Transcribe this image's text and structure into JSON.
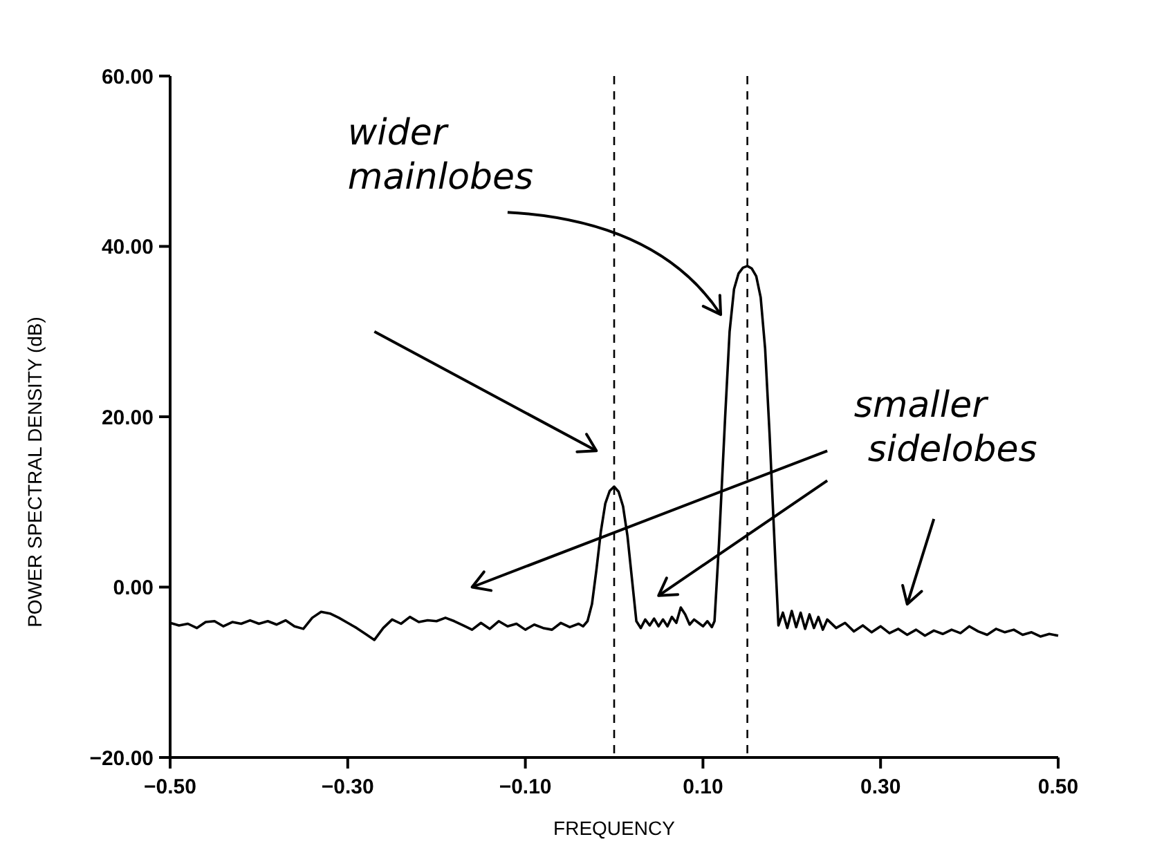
{
  "chart_data": {
    "type": "line",
    "xlabel": "FREQUENCY",
    "ylabel": "POWER SPECTRAL DENSITY (dB)",
    "xlim": [
      -0.5,
      0.5
    ],
    "ylim": [
      -20,
      60
    ],
    "xticks": [
      {
        "value": -0.5,
        "label": "−0.50"
      },
      {
        "value": -0.3,
        "label": "−0.30"
      },
      {
        "value": -0.1,
        "label": "−0.10"
      },
      {
        "value": 0.1,
        "label": "0.10"
      },
      {
        "value": 0.3,
        "label": "0.30"
      },
      {
        "value": 0.5,
        "label": "0.50"
      }
    ],
    "yticks": [
      {
        "value": -20,
        "label": "−20.00"
      },
      {
        "value": 0,
        "label": "0.00"
      },
      {
        "value": 20,
        "label": "20.00"
      },
      {
        "value": 40,
        "label": "40.00"
      },
      {
        "value": 60,
        "label": "60.00"
      }
    ],
    "grid": false,
    "series": [
      {
        "color": "#000000",
        "x": [
          -0.5,
          -0.49,
          -0.48,
          -0.47,
          -0.46,
          -0.45,
          -0.44,
          -0.43,
          -0.42,
          -0.41,
          -0.4,
          -0.39,
          -0.38,
          -0.37,
          -0.36,
          -0.35,
          -0.34,
          -0.33,
          -0.32,
          -0.31,
          -0.3,
          -0.29,
          -0.28,
          -0.27,
          -0.26,
          -0.25,
          -0.24,
          -0.23,
          -0.22,
          -0.21,
          -0.2,
          -0.19,
          -0.18,
          -0.17,
          -0.16,
          -0.15,
          -0.14,
          -0.13,
          -0.12,
          -0.11,
          -0.1,
          -0.09,
          -0.08,
          -0.07,
          -0.06,
          -0.05,
          -0.04,
          -0.035,
          -0.03,
          -0.025,
          -0.02,
          -0.015,
          -0.01,
          -0.005,
          0,
          0.005,
          0.01,
          0.015,
          0.02,
          0.025,
          0.03,
          0.035,
          0.04,
          0.045,
          0.05,
          0.055,
          0.06,
          0.065,
          0.07,
          0.075,
          0.08,
          0.085,
          0.09,
          0.095,
          0.1,
          0.105,
          0.11,
          0.113,
          0.118,
          0.125,
          0.13,
          0.135,
          0.14,
          0.145,
          0.15,
          0.155,
          0.16,
          0.165,
          0.17,
          0.175,
          0.182,
          0.185,
          0.19,
          0.195,
          0.2,
          0.205,
          0.21,
          0.215,
          0.22,
          0.225,
          0.23,
          0.235,
          0.24,
          0.25,
          0.26,
          0.27,
          0.28,
          0.29,
          0.3,
          0.31,
          0.32,
          0.33,
          0.34,
          0.35,
          0.36,
          0.37,
          0.38,
          0.39,
          0.4,
          0.41,
          0.42,
          0.43,
          0.44,
          0.45,
          0.46,
          0.47,
          0.48,
          0.49,
          0.5
        ],
        "values": [
          -4.2,
          -4.5,
          -4.3,
          -4.8,
          -4.1,
          -4.0,
          -4.6,
          -4.1,
          -4.3,
          -3.9,
          -4.3,
          -4.0,
          -4.4,
          -3.9,
          -4.6,
          -4.9,
          -3.6,
          -2.9,
          -3.1,
          -3.6,
          -4.2,
          -4.8,
          -5.5,
          -6.2,
          -4.8,
          -3.8,
          -4.3,
          -3.5,
          -4.1,
          -3.9,
          -4.0,
          -3.6,
          -4.0,
          -4.5,
          -5.0,
          -4.2,
          -4.9,
          -4.0,
          -4.6,
          -4.3,
          -5.0,
          -4.4,
          -4.8,
          -5.0,
          -4.2,
          -4.7,
          -4.3,
          -4.6,
          -4.0,
          -2.0,
          2.0,
          6.5,
          9.8,
          11.3,
          11.8,
          11.2,
          9.5,
          6.0,
          1.0,
          -4.0,
          -4.8,
          -3.8,
          -4.5,
          -3.7,
          -4.6,
          -3.8,
          -4.6,
          -3.5,
          -4.2,
          -2.4,
          -3.2,
          -4.4,
          -3.8,
          -4.2,
          -4.6,
          -4.0,
          -4.7,
          -4.0,
          5,
          20,
          30,
          35,
          36.8,
          37.5,
          37.7,
          37.4,
          36.5,
          34,
          28,
          18,
          2,
          -4.5,
          -3.0,
          -4.8,
          -2.8,
          -4.7,
          -3.0,
          -4.9,
          -3.2,
          -4.8,
          -3.5,
          -5.0,
          -3.8,
          -4.8,
          -4.2,
          -5.2,
          -4.5,
          -5.3,
          -4.6,
          -5.4,
          -4.9,
          -5.6,
          -5.0,
          -5.7,
          -5.1,
          -5.5,
          -5.0,
          -5.4,
          -4.6,
          -5.2,
          -5.6,
          -4.9,
          -5.3,
          -5.0,
          -5.6,
          -5.3,
          -5.8,
          -5.5,
          -5.7
        ]
      }
    ],
    "ref_lines": [
      {
        "axis": "x",
        "value": 0,
        "color": "#000000",
        "line_style": "dashed"
      },
      {
        "axis": "x",
        "value": 0.15,
        "color": "#000000",
        "line_style": "dashed"
      }
    ],
    "annotations": [
      "wider mainlobes",
      "smaller sidelobes"
    ]
  }
}
